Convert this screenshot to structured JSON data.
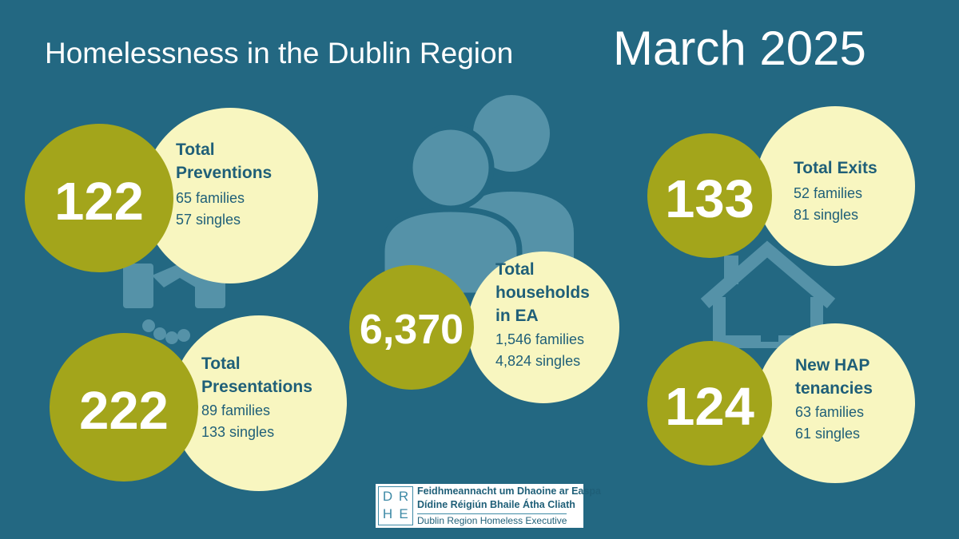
{
  "header": {
    "title": "Homelessness in the Dublin Region",
    "date": "March 2025"
  },
  "colors": {
    "background": "#236882",
    "number_circle": "#a3a51b",
    "label_circle": "#f8f6c0",
    "icon": "#5592a8",
    "label_text": "#1f5f78"
  },
  "stats": {
    "preventions": {
      "number": "122",
      "title_line1": "Total",
      "title_line2": "Preventions",
      "families": "65 families",
      "singles": "57 singles",
      "icon": "handshake-icon"
    },
    "presentations": {
      "number": "222",
      "title_line1": "Total",
      "title_line2": "Presentations",
      "families": "89 families",
      "singles": "133 singles"
    },
    "households": {
      "number": "6,370",
      "title_line1": "Total",
      "title_line2": "households",
      "title_line3": "in EA",
      "families": "1,546 families",
      "singles": "4,824 singles",
      "icon": "people-icon"
    },
    "exits": {
      "number": "133",
      "title_line1": "Total Exits",
      "families": "52 families",
      "singles": "81 singles",
      "icon": "house-icon"
    },
    "hap": {
      "number": "124",
      "title_line1": "New HAP",
      "title_line2": "tenancies",
      "families": "63 families",
      "singles": "61  singles"
    }
  },
  "logo": {
    "letters": [
      "D",
      "R",
      "H",
      "E"
    ],
    "line1": "Feidhmeannacht um Dhaoine ar Easpa",
    "line2": "Dídine Réigiún Bhaile Átha Cliath",
    "line3": "Dublin Region Homeless Executive"
  }
}
